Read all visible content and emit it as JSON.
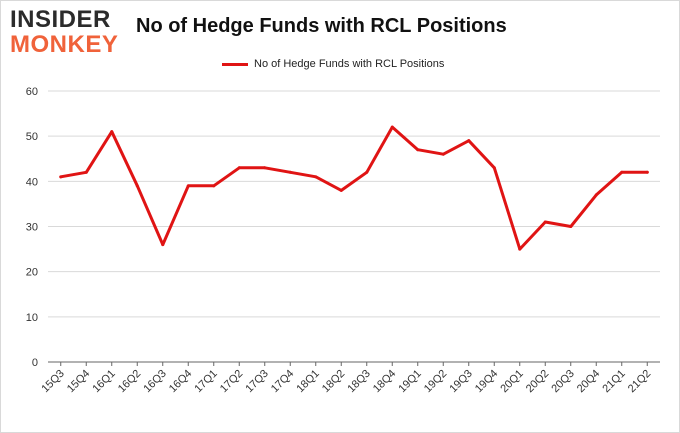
{
  "logo": {
    "line1": "INSIDER",
    "line2": "MONKEY"
  },
  "colors": {
    "line": "#e01414",
    "grid": "#d9d9d9",
    "axis": "#666666",
    "logo_accent": "#f0623a"
  },
  "chart_data": {
    "type": "line",
    "title": "No of Hedge Funds with RCL Positions",
    "xlabel": "",
    "ylabel": "",
    "ylim": [
      0,
      60
    ],
    "yticks": [
      0,
      10,
      20,
      30,
      40,
      50,
      60
    ],
    "grid": true,
    "legend_position": "top-center",
    "categories": [
      "15Q3",
      "15Q4",
      "16Q1",
      "16Q2",
      "16Q3",
      "16Q4",
      "17Q1",
      "17Q2",
      "17Q3",
      "17Q4",
      "18Q1",
      "18Q2",
      "18Q3",
      "18Q4",
      "19Q1",
      "19Q2",
      "19Q3",
      "19Q4",
      "20Q1",
      "20Q2",
      "20Q3",
      "20Q4",
      "21Q1",
      "21Q2"
    ],
    "series": [
      {
        "name": "No of Hedge Funds with RCL Positions",
        "values": [
          41,
          42,
          51,
          39,
          26,
          39,
          39,
          43,
          43,
          42,
          41,
          38,
          42,
          52,
          47,
          46,
          49,
          43,
          25,
          31,
          30,
          37,
          42,
          42
        ]
      }
    ]
  }
}
